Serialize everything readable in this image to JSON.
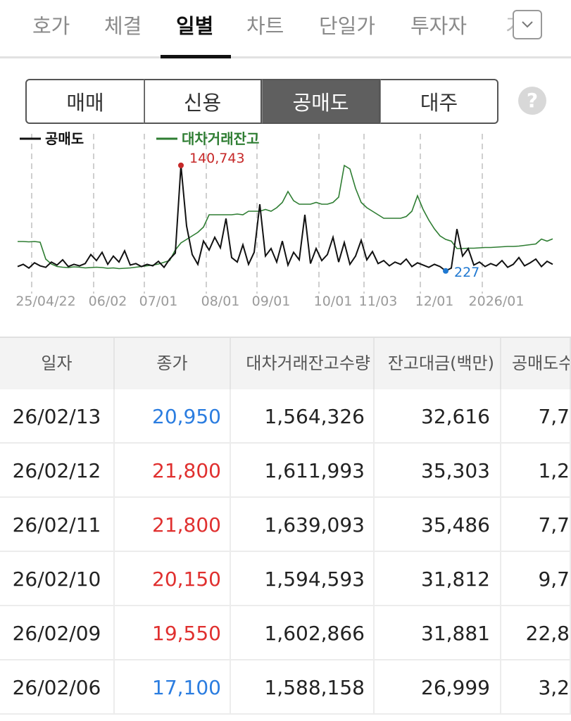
{
  "tabs": {
    "items": [
      "호가",
      "체결",
      "일별",
      "차트",
      "단일가",
      "투자자",
      "기"
    ],
    "active": 2
  },
  "segments": {
    "items": [
      "매매",
      "신용",
      "공매도",
      "대주"
    ],
    "active": 2
  },
  "help": "?",
  "chart_data": {
    "type": "line",
    "xlim": [
      0,
      95
    ],
    "xticks": [
      {
        "value": 5,
        "label": "25/04/22"
      },
      {
        "value": 16,
        "label": "06/02"
      },
      {
        "value": 25,
        "label": "07/01"
      },
      {
        "value": 36,
        "label": "08/01"
      },
      {
        "value": 45,
        "label": "09/01"
      },
      {
        "value": 56,
        "label": "10/01"
      },
      {
        "value": 64,
        "label": "11/03"
      },
      {
        "value": 74,
        "label": "12/01"
      },
      {
        "value": 85,
        "label": "2026/01"
      }
    ],
    "ylim": [
      0,
      150000
    ],
    "y2lim": [
      650000,
      3850000
    ],
    "grid": true,
    "highlight": {
      "max_color": "#c62828",
      "min_color": "#1f78d1"
    },
    "series": [
      {
        "name": "공매도",
        "color": "#111111",
        "values": [
          6000,
          9000,
          4000,
          11000,
          7000,
          5000,
          12000,
          8000,
          15000,
          6000,
          9000,
          7000,
          10000,
          22000,
          14000,
          25000,
          9000,
          20000,
          12000,
          27000,
          8000,
          10000,
          6000,
          9000,
          7000,
          13000,
          5000,
          16000,
          24000,
          140743,
          60000,
          22000,
          9000,
          40000,
          28000,
          45000,
          31000,
          70000,
          18000,
          12000,
          35000,
          9000,
          25000,
          89000,
          20000,
          30000,
          12000,
          40000,
          8000,
          25000,
          15000,
          75000,
          10000,
          30000,
          14000,
          22000,
          45000,
          12000,
          38000,
          9000,
          20000,
          41000,
          15000,
          26000,
          10000,
          14000,
          7000,
          12000,
          9000,
          16000,
          6000,
          11000,
          8000,
          5000,
          9000,
          6000,
          227,
          4000,
          56000,
          20000,
          30000,
          8000,
          12000,
          6000,
          10000,
          7000,
          14000,
          5000,
          9000,
          18000,
          7000,
          11000,
          16000,
          6000,
          13000,
          9000
        ],
        "value_labels": [
          null,
          null,
          null,
          null,
          null,
          null,
          null,
          null,
          null,
          null,
          null,
          null,
          null,
          null,
          null,
          null,
          null,
          null,
          null,
          null,
          null,
          null,
          null,
          null,
          null,
          null,
          null,
          null,
          null,
          "140,743",
          null,
          null,
          null,
          null,
          null,
          null,
          null,
          null,
          null,
          null,
          null,
          null,
          null,
          null,
          null,
          null,
          null,
          null,
          null,
          null,
          null,
          null,
          null,
          null,
          null,
          null,
          null,
          null,
          null,
          null,
          null,
          null,
          null,
          null,
          null,
          null,
          null,
          null,
          null,
          null,
          null,
          null,
          null,
          null,
          null,
          null,
          "227",
          null,
          null,
          null,
          null,
          null,
          null,
          null,
          null,
          null,
          null,
          null,
          null,
          null,
          null,
          null,
          null,
          null,
          null,
          null
        ]
      },
      {
        "name": "대차거래잔고",
        "color": "#2e7d32",
        "axis": "y2",
        "values": [
          1490000,
          1490000,
          1480000,
          1490000,
          1470000,
          990000,
          850000,
          780000,
          760000,
          750000,
          770000,
          760000,
          740000,
          750000,
          760000,
          750000,
          730000,
          740000,
          720000,
          730000,
          740000,
          760000,
          780000,
          800000,
          820000,
          850000,
          900000,
          950000,
          1250000,
          1450000,
          1550000,
          1650000,
          1750000,
          1900000,
          2250000,
          2250000,
          2250000,
          2250000,
          2250000,
          2270000,
          2250000,
          2350000,
          2350000,
          2350000,
          2400000,
          2350000,
          2450000,
          2600000,
          2910000,
          2650000,
          2550000,
          2550000,
          2550000,
          2600000,
          2550000,
          2550000,
          2600000,
          2750000,
          3650000,
          3550000,
          3000000,
          2600000,
          2450000,
          2350000,
          2250000,
          2150000,
          2150000,
          2150000,
          2150000,
          2200000,
          2350000,
          2790000,
          2400000,
          2100000,
          1850000,
          1650000,
          1550000,
          1500000,
          1290000,
          1290000,
          1300000,
          1300000,
          1310000,
          1320000,
          1320000,
          1330000,
          1340000,
          1350000,
          1350000,
          1360000,
          1380000,
          1400000,
          1420000,
          1560000,
          1500000,
          1564326
        ]
      }
    ]
  },
  "table": {
    "header": [
      "일자",
      "종가",
      "대차거래잔고수량",
      "잔고대금(백만)",
      "공매도수"
    ],
    "rows": [
      [
        "26/02/13",
        "20,950",
        "1,564,326",
        "32,616",
        "7,7"
      ],
      [
        "26/02/12",
        "21,800",
        "1,611,993",
        "35,303",
        "1,2"
      ],
      [
        "26/02/11",
        "21,800",
        "1,639,093",
        "35,486",
        "7,7"
      ],
      [
        "26/02/10",
        "20,150",
        "1,594,593",
        "31,812",
        "9,7"
      ],
      [
        "26/02/09",
        "19,550",
        "1,602,866",
        "31,881",
        "22,8"
      ],
      [
        "26/02/06",
        "17,100",
        "1,588,158",
        "26,999",
        "3,2"
      ]
    ],
    "close_colors": [
      "#2b7de0",
      "#e0302f",
      "#e0302f",
      "#e0302f",
      "#e0302f",
      "#2b7de0"
    ]
  }
}
